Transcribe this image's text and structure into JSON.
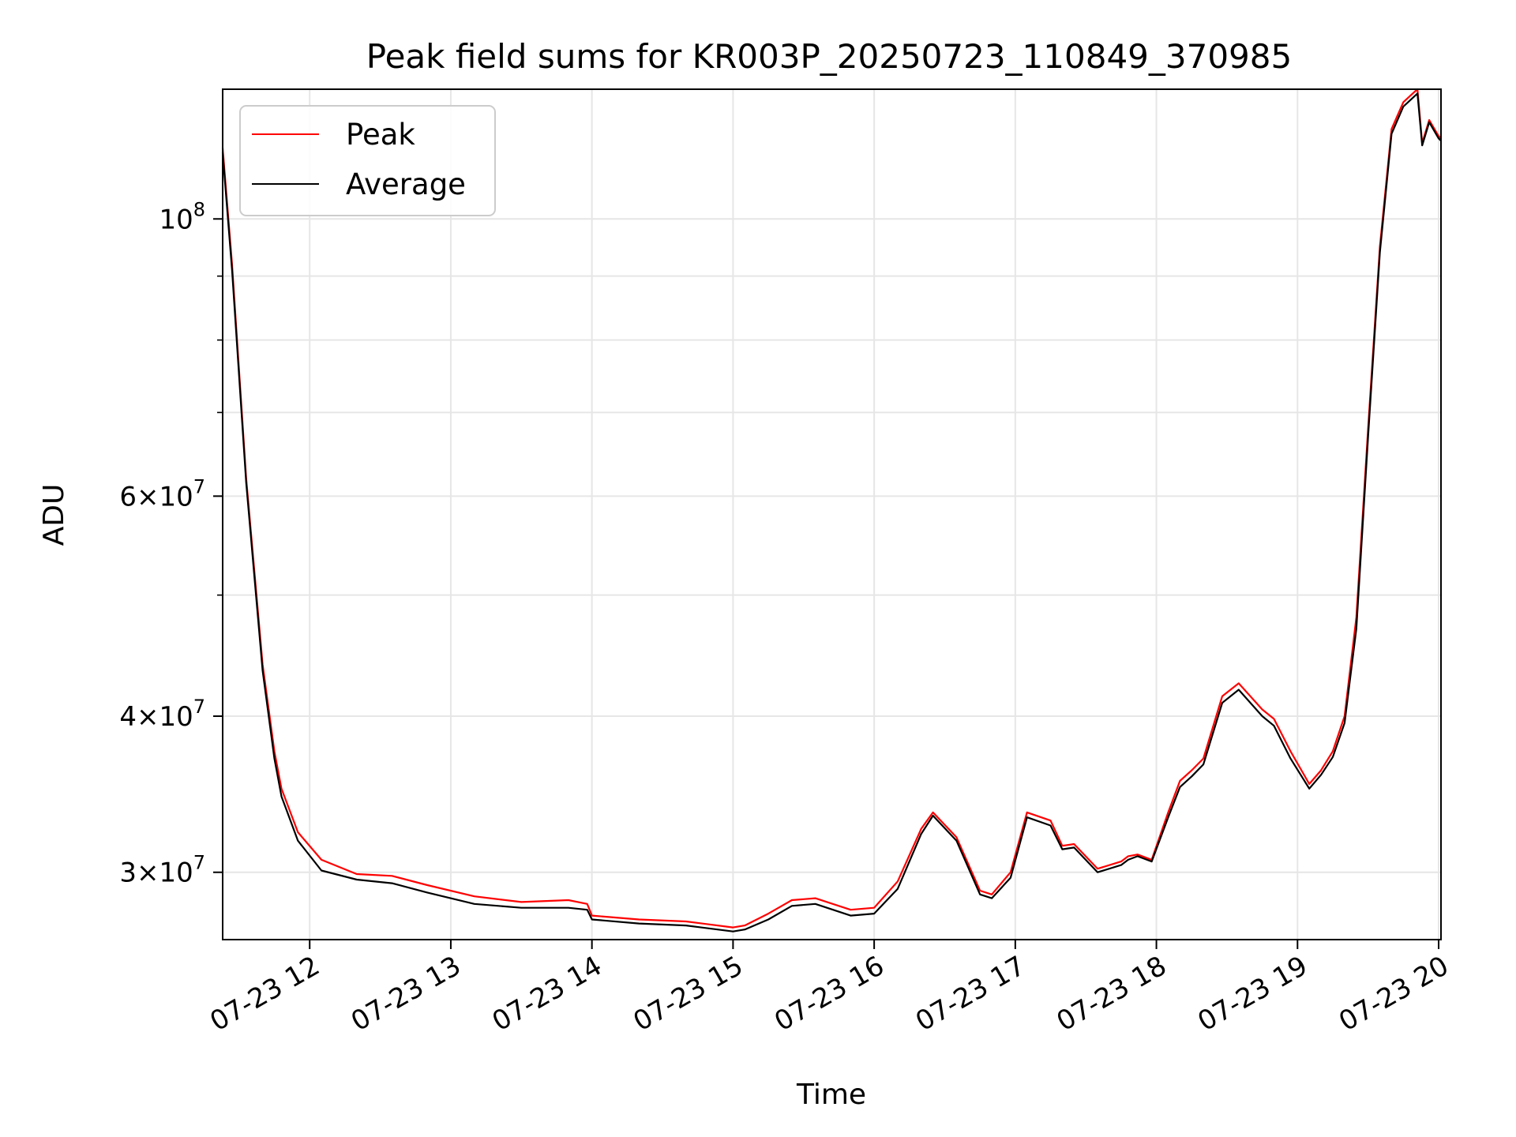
{
  "chart_data": {
    "type": "line",
    "title": "Peak field sums for KR003P_20250723_110849_370985",
    "xlabel": "Time",
    "ylabel": "ADU",
    "yscale": "log",
    "grid": true,
    "legend_position": "top-left",
    "xlim": [
      "2025-07-23T11:23",
      "2025-07-23T20:01"
    ],
    "ylim": [
      26500000,
      127000000
    ],
    "x_ticks": [
      {
        "label": "07-23 12",
        "value": "2025-07-23T12:00"
      },
      {
        "label": "07-23 13",
        "value": "2025-07-23T13:00"
      },
      {
        "label": "07-23 14",
        "value": "2025-07-23T14:00"
      },
      {
        "label": "07-23 15",
        "value": "2025-07-23T15:00"
      },
      {
        "label": "07-23 16",
        "value": "2025-07-23T16:00"
      },
      {
        "label": "07-23 17",
        "value": "2025-07-23T17:00"
      },
      {
        "label": "07-23 18",
        "value": "2025-07-23T18:00"
      },
      {
        "label": "07-23 19",
        "value": "2025-07-23T19:00"
      },
      {
        "label": "07-23 20",
        "value": "2025-07-23T20:00"
      }
    ],
    "y_ticks_major": [
      {
        "label_base": "10",
        "label_exp": "8",
        "value": 100000000
      },
      {
        "label_base": "6×10",
        "label_exp": "7",
        "value": 60000000
      },
      {
        "label_base": "4×10",
        "label_exp": "7",
        "value": 40000000
      },
      {
        "label_base": "3×10",
        "label_exp": "7",
        "value": 30000000
      }
    ],
    "y_ticks_minor": [
      50000000,
      70000000,
      80000000,
      90000000
    ],
    "series": [
      {
        "name": "Peak",
        "color": "#ff0000",
        "x": [
          "2025-07-23T11:23",
          "2025-07-23T11:27",
          "2025-07-23T11:33",
          "2025-07-23T11:40",
          "2025-07-23T11:45",
          "2025-07-23T11:48",
          "2025-07-23T11:55",
          "2025-07-23T12:05",
          "2025-07-23T12:20",
          "2025-07-23T12:35",
          "2025-07-23T12:50",
          "2025-07-23T13:10",
          "2025-07-23T13:30",
          "2025-07-23T13:50",
          "2025-07-23T13:58",
          "2025-07-23T14:00",
          "2025-07-23T14:20",
          "2025-07-23T14:40",
          "2025-07-23T15:00",
          "2025-07-23T15:05",
          "2025-07-23T15:15",
          "2025-07-23T15:25",
          "2025-07-23T15:35",
          "2025-07-23T15:50",
          "2025-07-23T16:00",
          "2025-07-23T16:10",
          "2025-07-23T16:20",
          "2025-07-23T16:25",
          "2025-07-23T16:35",
          "2025-07-23T16:45",
          "2025-07-23T16:50",
          "2025-07-23T16:58",
          "2025-07-23T17:05",
          "2025-07-23T17:15",
          "2025-07-23T17:20",
          "2025-07-23T17:25",
          "2025-07-23T17:35",
          "2025-07-23T17:45",
          "2025-07-23T17:48",
          "2025-07-23T17:52",
          "2025-07-23T17:58",
          "2025-07-23T18:05",
          "2025-07-23T18:10",
          "2025-07-23T18:15",
          "2025-07-23T18:20",
          "2025-07-23T18:28",
          "2025-07-23T18:35",
          "2025-07-23T18:45",
          "2025-07-23T18:50",
          "2025-07-23T18:57",
          "2025-07-23T19:05",
          "2025-07-23T19:10",
          "2025-07-23T19:15",
          "2025-07-23T19:20",
          "2025-07-23T19:25",
          "2025-07-23T19:30",
          "2025-07-23T19:35",
          "2025-07-23T19:40",
          "2025-07-23T19:45",
          "2025-07-23T19:50",
          "2025-07-23T19:51",
          "2025-07-23T19:53",
          "2025-07-23T19:56",
          "2025-07-23T20:00",
          "2025-07-23T20:01"
        ],
        "values": [
          114000000,
          92000000,
          62000000,
          44000000,
          37500000,
          35000000,
          32300000,
          30700000,
          29900000,
          29800000,
          29300000,
          28700000,
          28400000,
          28500000,
          28300000,
          27700000,
          27500000,
          27400000,
          27100000,
          27200000,
          27800000,
          28500000,
          28600000,
          28000000,
          28100000,
          29500000,
          32500000,
          33500000,
          32000000,
          29000000,
          28800000,
          30000000,
          33500000,
          33000000,
          31500000,
          31600000,
          30200000,
          30600000,
          30900000,
          31000000,
          30700000,
          33500000,
          35500000,
          36200000,
          37000000,
          41500000,
          42500000,
          40500000,
          39800000,
          37500000,
          35300000,
          36200000,
          37500000,
          40000000,
          48000000,
          68000000,
          95000000,
          118000000,
          124000000,
          126500000,
          127000000,
          115000000,
          120000000,
          116500000,
          116000000
        ]
      },
      {
        "name": "Average",
        "color": "#000000",
        "x": [
          "2025-07-23T11:23",
          "2025-07-23T11:27",
          "2025-07-23T11:33",
          "2025-07-23T11:40",
          "2025-07-23T11:45",
          "2025-07-23T11:48",
          "2025-07-23T11:55",
          "2025-07-23T12:05",
          "2025-07-23T12:20",
          "2025-07-23T12:35",
          "2025-07-23T12:50",
          "2025-07-23T13:10",
          "2025-07-23T13:30",
          "2025-07-23T13:50",
          "2025-07-23T13:58",
          "2025-07-23T14:00",
          "2025-07-23T14:20",
          "2025-07-23T14:40",
          "2025-07-23T15:00",
          "2025-07-23T15:05",
          "2025-07-23T15:15",
          "2025-07-23T15:25",
          "2025-07-23T15:35",
          "2025-07-23T15:50",
          "2025-07-23T16:00",
          "2025-07-23T16:10",
          "2025-07-23T16:20",
          "2025-07-23T16:25",
          "2025-07-23T16:35",
          "2025-07-23T16:45",
          "2025-07-23T16:50",
          "2025-07-23T16:58",
          "2025-07-23T17:05",
          "2025-07-23T17:15",
          "2025-07-23T17:20",
          "2025-07-23T17:25",
          "2025-07-23T17:35",
          "2025-07-23T17:45",
          "2025-07-23T17:48",
          "2025-07-23T17:52",
          "2025-07-23T17:58",
          "2025-07-23T18:05",
          "2025-07-23T18:10",
          "2025-07-23T18:15",
          "2025-07-23T18:20",
          "2025-07-23T18:28",
          "2025-07-23T18:35",
          "2025-07-23T18:45",
          "2025-07-23T18:50",
          "2025-07-23T18:57",
          "2025-07-23T19:05",
          "2025-07-23T19:10",
          "2025-07-23T19:15",
          "2025-07-23T19:20",
          "2025-07-23T19:25",
          "2025-07-23T19:30",
          "2025-07-23T19:35",
          "2025-07-23T19:40",
          "2025-07-23T19:45",
          "2025-07-23T19:50",
          "2025-07-23T19:51",
          "2025-07-23T19:53",
          "2025-07-23T19:56",
          "2025-07-23T20:00",
          "2025-07-23T20:01"
        ],
        "values": [
          113000000,
          91000000,
          61500000,
          43500000,
          37000000,
          34500000,
          31800000,
          30100000,
          29600000,
          29400000,
          28900000,
          28300000,
          28100000,
          28100000,
          28000000,
          27500000,
          27300000,
          27200000,
          26900000,
          27000000,
          27500000,
          28200000,
          28300000,
          27700000,
          27800000,
          29100000,
          32200000,
          33300000,
          31800000,
          28800000,
          28600000,
          29700000,
          33200000,
          32700000,
          31300000,
          31400000,
          30000000,
          30400000,
          30700000,
          30900000,
          30600000,
          33200000,
          35100000,
          35800000,
          36600000,
          41000000,
          42000000,
          40000000,
          39300000,
          37000000,
          35000000,
          35900000,
          37100000,
          39500000,
          47000000,
          67000000,
          94000000,
          117000000,
          123000000,
          125500000,
          126000000,
          114500000,
          119500000,
          116000000,
          115500000
        ]
      }
    ]
  }
}
